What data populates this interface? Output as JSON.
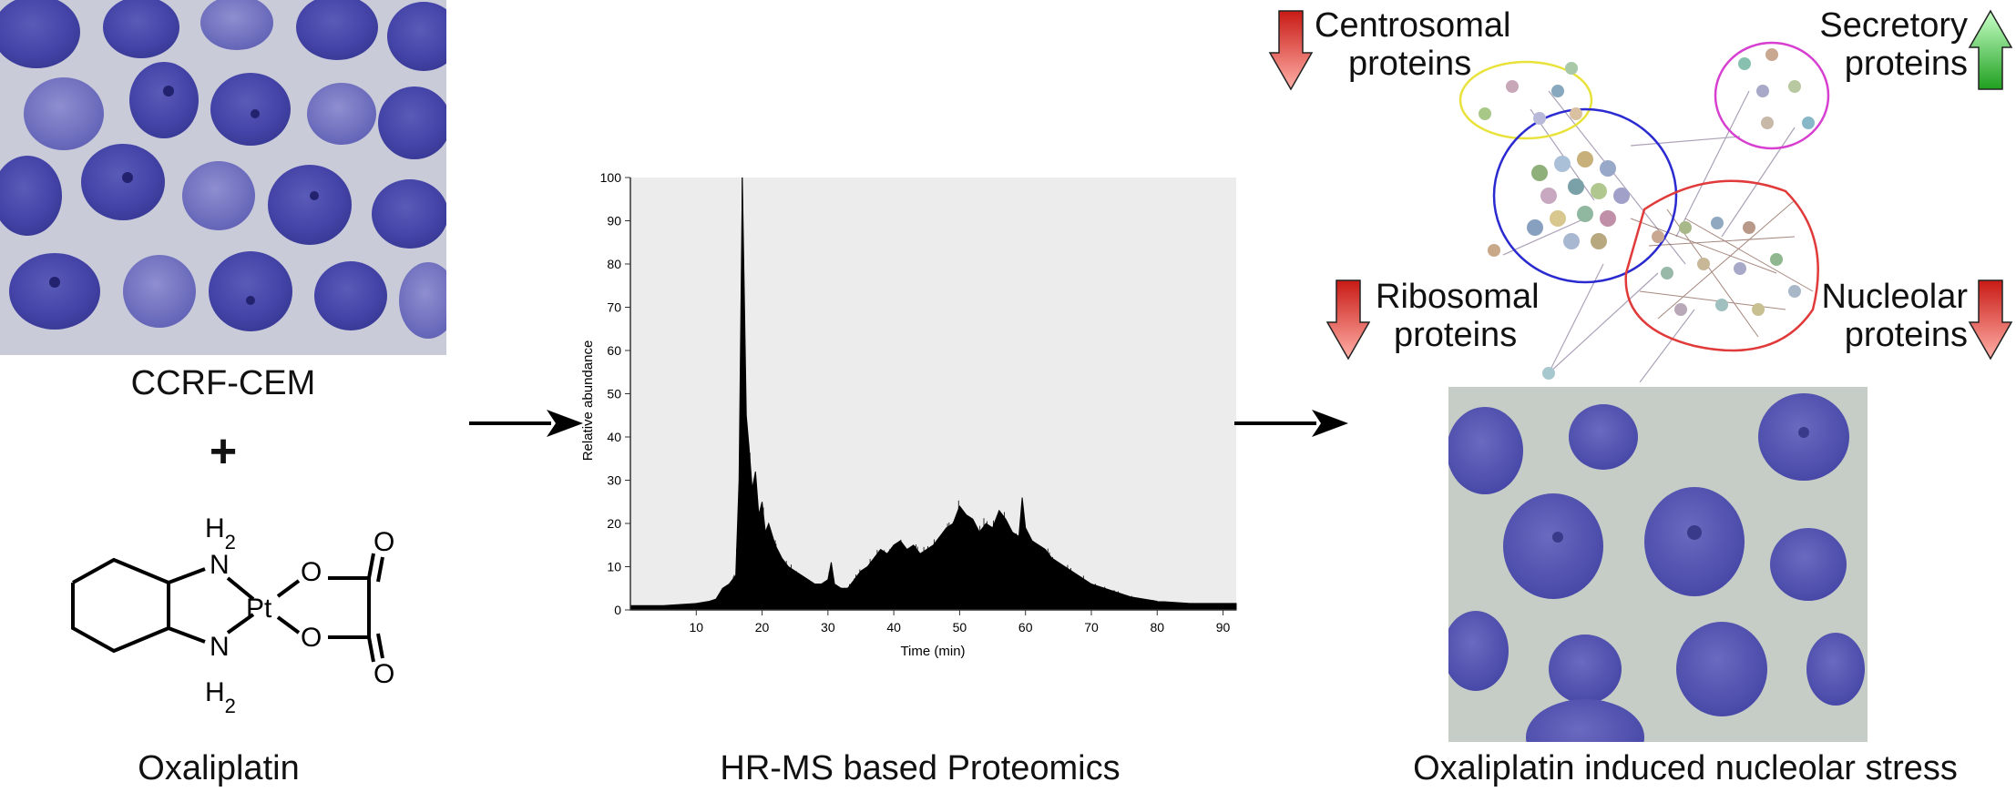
{
  "panels": {
    "cells_left": {
      "caption": "CCRF-CEM"
    },
    "plus": "+",
    "drug": {
      "caption": "Oxaliplatin",
      "atoms": {
        "nh2_top": "H2",
        "n_top": "N",
        "n_bottom": "N",
        "nh2_bottom": "H2",
        "pt": "Pt",
        "o_top": "O",
        "o_bottom": "O",
        "o_top_carbonyl": "O",
        "o_bottom_carbonyl": "O"
      }
    },
    "ms": {
      "caption": "HR-MS based Proteomics"
    },
    "network": {
      "labels": {
        "centrosomal": [
          "Centrosomal",
          "proteins"
        ],
        "secretory": [
          "Secretory",
          "proteins"
        ],
        "ribosomal": [
          "Ribosomal",
          "proteins"
        ],
        "nucleolar": [
          "Nucleolar",
          "proteins"
        ]
      },
      "arrows": {
        "centrosomal": "down",
        "secretory": "up",
        "ribosomal": "down",
        "nucleolar": "down"
      },
      "colors": {
        "centrosomal": "#e8e23a",
        "secretory": "#d63fd0",
        "ribosomal": "#2a2ad0",
        "nucleolar": "#e03a3a",
        "arrow_down": "#e0201a",
        "arrow_up": "#30c030"
      }
    },
    "cells_right": {
      "caption": "Oxaliplatin induced nucleolar stress"
    }
  },
  "chart_data": {
    "type": "line",
    "xlabel": "Time (min)",
    "ylabel": "Relative abundance",
    "xlim": [
      0,
      92
    ],
    "ylim": [
      0,
      100
    ],
    "xticks": [
      10,
      20,
      30,
      40,
      50,
      60,
      70,
      80,
      90
    ],
    "yticks": [
      0,
      10,
      20,
      30,
      40,
      50,
      60,
      70,
      80,
      90,
      100
    ],
    "series": [
      {
        "x": [
          0,
          5,
          10,
          12,
          13,
          14,
          15,
          16,
          16.5,
          17,
          17.3,
          17.6,
          18,
          18.5,
          19,
          19.5,
          20,
          20.5,
          21,
          22,
          23,
          24,
          25,
          26,
          27,
          28,
          29,
          30,
          30.5,
          31,
          32,
          33,
          34,
          35,
          36,
          37,
          38,
          39,
          40,
          41,
          42,
          43,
          44,
          45,
          46,
          47,
          48,
          49,
          50,
          51,
          52,
          53,
          54,
          55,
          56,
          57,
          58,
          59,
          59.5,
          60,
          61,
          62,
          63,
          64,
          65,
          66,
          67,
          68,
          69,
          70,
          72,
          74,
          76,
          78,
          80,
          85,
          90,
          92
        ],
        "y": [
          1,
          1,
          1.5,
          2,
          2.5,
          5,
          6,
          8,
          30,
          100,
          73,
          45,
          38,
          28,
          32,
          22,
          25,
          18,
          20,
          15,
          12,
          10,
          9,
          8,
          7,
          6,
          6,
          7,
          11,
          6,
          5,
          5,
          7,
          9,
          10,
          12,
          14,
          13,
          15,
          16,
          14,
          15,
          13,
          14,
          15,
          17,
          19,
          20,
          24,
          22,
          21,
          18,
          20,
          19,
          23,
          21,
          18,
          17,
          26,
          19,
          16,
          15,
          14,
          12,
          11,
          10,
          9,
          8,
          7,
          6,
          5,
          4,
          3,
          2.5,
          2,
          1.5,
          1.5,
          1.5
        ]
      }
    ]
  }
}
